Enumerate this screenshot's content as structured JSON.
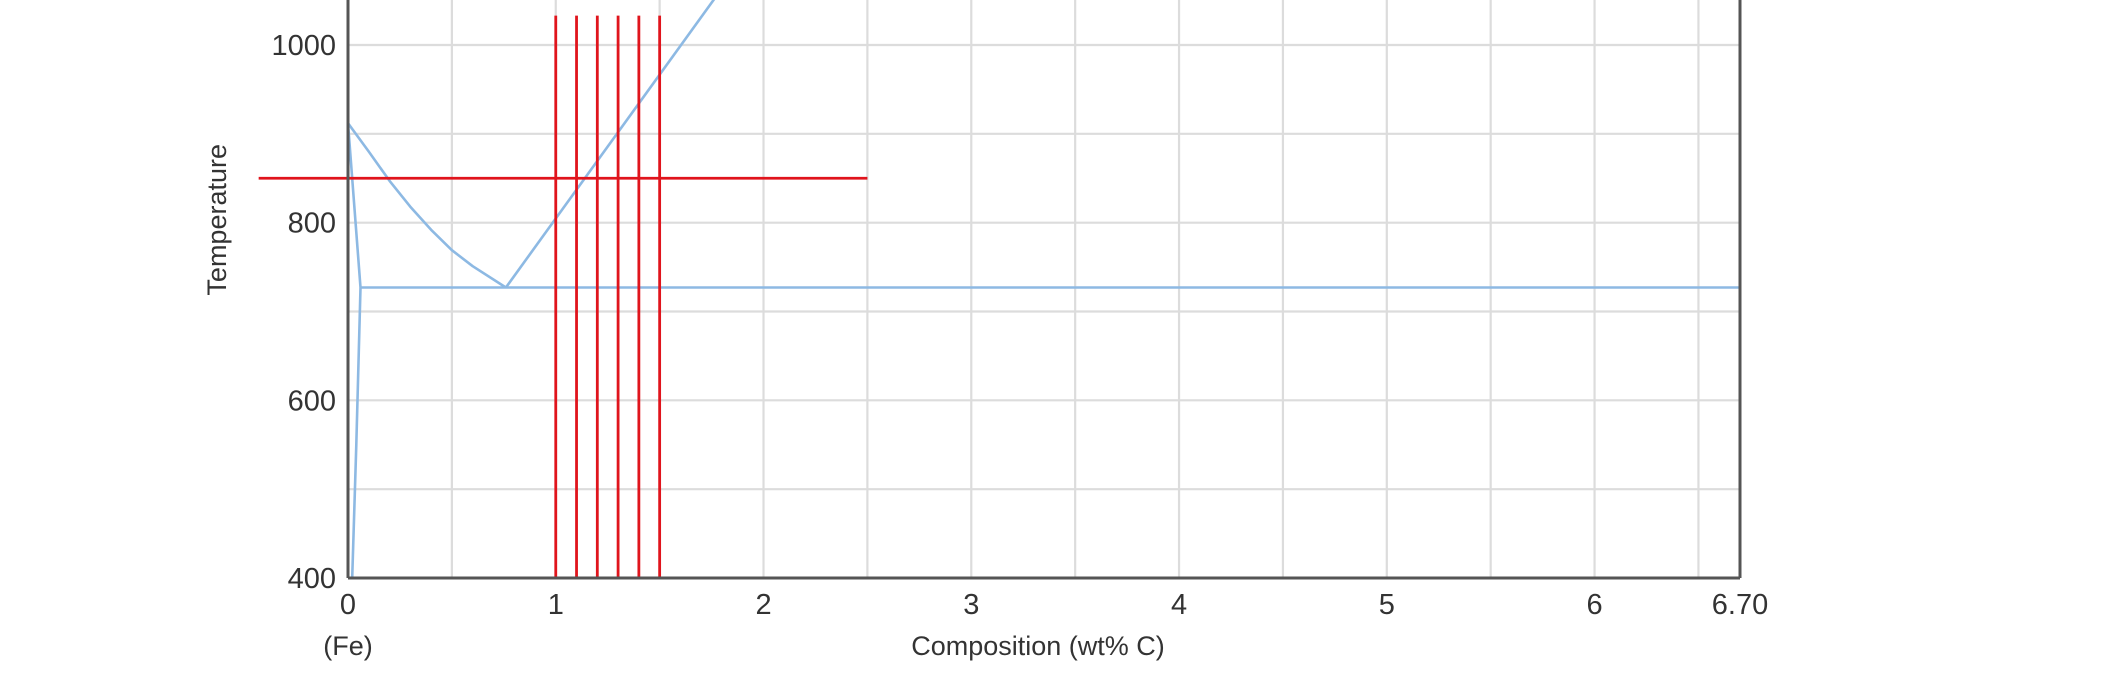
{
  "chart_data": {
    "type": "line",
    "title": "",
    "xlabel": "Composition (wt% C)",
    "ylabel": "Temperature",
    "x_sub_label": "(Fe)",
    "xlim": [
      0,
      6.7
    ],
    "ylim": [
      400,
      1080
    ],
    "x_ticks": [
      {
        "value": 0,
        "label": "0"
      },
      {
        "value": 1,
        "label": "1"
      },
      {
        "value": 2,
        "label": "2"
      },
      {
        "value": 3,
        "label": "3"
      },
      {
        "value": 4,
        "label": "4"
      },
      {
        "value": 5,
        "label": "5"
      },
      {
        "value": 6,
        "label": "6"
      },
      {
        "value": 6.7,
        "label": "6.70"
      }
    ],
    "y_ticks": [
      {
        "value": 400,
        "label": "400"
      },
      {
        "value": 600,
        "label": "600"
      },
      {
        "value": 800,
        "label": "800"
      },
      {
        "value": 1000,
        "label": "1000"
      }
    ],
    "x_grid": [
      0.5,
      1,
      1.5,
      2,
      2.5,
      3,
      3.5,
      4,
      4.5,
      5,
      5.5,
      6,
      6.5
    ],
    "y_grid": [
      400,
      500,
      600,
      700,
      800,
      900,
      1000
    ],
    "grid": true,
    "series": [
      {
        "role": "gamma-alpha boundary (A3)",
        "color": "#8db9e3",
        "points": [
          [
            0,
            912
          ],
          [
            0.1,
            880
          ],
          [
            0.2,
            847
          ],
          [
            0.3,
            818
          ],
          [
            0.4,
            792
          ],
          [
            0.5,
            769
          ],
          [
            0.6,
            751
          ],
          [
            0.76,
            727
          ]
        ]
      },
      {
        "role": "eutectoid isotherm",
        "color": "#8db9e3",
        "points": [
          [
            0.06,
            727
          ],
          [
            6.7,
            727
          ]
        ]
      },
      {
        "role": "alpha solvus (outer)",
        "color": "#8db9e3",
        "points": [
          [
            0,
            912
          ],
          [
            0.06,
            727
          ],
          [
            0.04,
            550
          ],
          [
            0.02,
            400
          ]
        ]
      },
      {
        "role": "alpha solvus (inner)",
        "color": "#8db9e3",
        "points": [
          [
            0,
            912
          ],
          [
            0,
            400
          ]
        ]
      },
      {
        "role": "gamma-Fe3C boundary (Acm)",
        "color": "#8db9e3",
        "points": [
          [
            0.76,
            727
          ],
          [
            1.85,
            1080
          ]
        ]
      }
    ],
    "overlay": {
      "color": "#e0141c",
      "vertical_lines": [
        {
          "x": 1.0,
          "y_from": 400,
          "y_to": 1033
        },
        {
          "x": 1.1,
          "y_from": 400,
          "y_to": 1033
        },
        {
          "x": 1.2,
          "y_from": 400,
          "y_to": 1033
        },
        {
          "x": 1.3,
          "y_from": 400,
          "y_to": 1033
        },
        {
          "x": 1.4,
          "y_from": 400,
          "y_to": 1033
        },
        {
          "x": 1.5,
          "y_from": 400,
          "y_to": 1033
        }
      ],
      "horizontal_lines": [
        {
          "y": 850,
          "x_from": -0.43,
          "x_to": 2.5
        }
      ]
    }
  }
}
